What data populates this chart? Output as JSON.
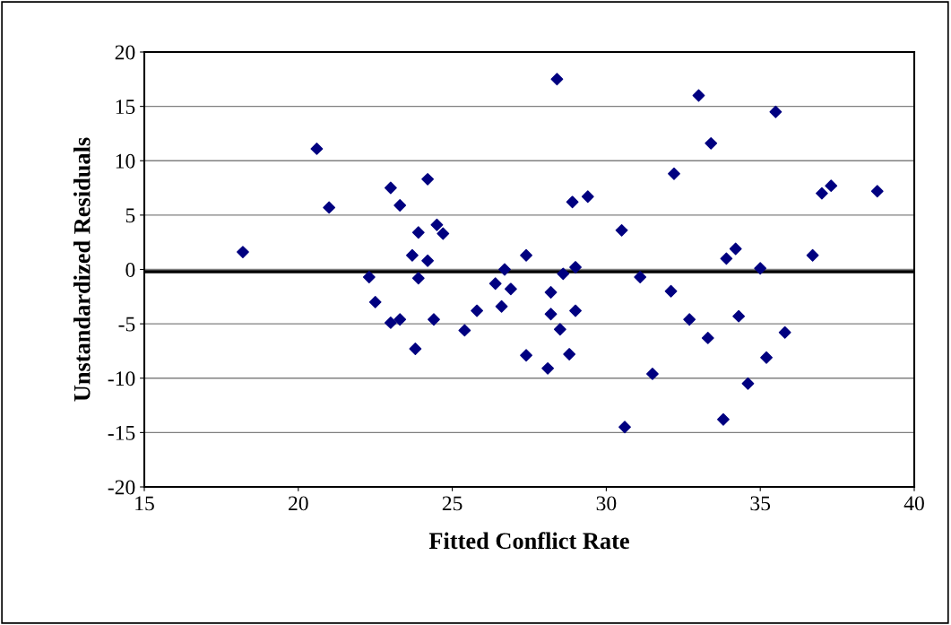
{
  "chart_data": {
    "type": "scatter",
    "xlabel": "Fitted Conflict Rate",
    "ylabel": "Unstandardized Residuals",
    "x": [
      18.2,
      20.6,
      21.0,
      22.3,
      22.5,
      23.0,
      23.0,
      23.3,
      23.3,
      23.7,
      23.8,
      23.9,
      23.9,
      24.2,
      24.2,
      24.4,
      24.5,
      24.7,
      25.4,
      25.8,
      26.4,
      26.6,
      26.7,
      26.9,
      27.4,
      27.4,
      28.1,
      28.2,
      28.2,
      28.4,
      28.5,
      28.6,
      28.8,
      28.9,
      29.0,
      29.0,
      29.4,
      30.5,
      30.6,
      31.1,
      31.5,
      32.1,
      32.2,
      32.7,
      33.0,
      33.3,
      33.4,
      33.8,
      33.9,
      34.2,
      34.3,
      34.6,
      35.0,
      35.2,
      35.5,
      35.8,
      36.7,
      37.0,
      37.3,
      38.8
    ],
    "series": [
      {
        "color": "#000080",
        "values": [
          1.6,
          11.1,
          5.7,
          -0.7,
          -3.0,
          7.5,
          -4.9,
          5.9,
          -4.6,
          1.3,
          -7.3,
          -0.8,
          3.4,
          8.3,
          0.8,
          -4.6,
          4.1,
          3.3,
          -5.6,
          -3.8,
          -1.3,
          -3.4,
          0.0,
          -1.8,
          1.3,
          -7.9,
          -9.1,
          -2.1,
          -4.1,
          17.5,
          -5.5,
          -0.4,
          -7.8,
          6.2,
          0.2,
          -3.8,
          6.7,
          3.6,
          -14.5,
          -0.7,
          -9.6,
          -2.0,
          8.8,
          -4.6,
          16.0,
          -6.3,
          11.6,
          -13.8,
          1.0,
          1.9,
          -4.3,
          -10.5,
          0.1,
          -8.1,
          14.5,
          -5.8,
          1.3,
          7.0,
          7.7,
          7.2
        ]
      }
    ],
    "marker": "diamond",
    "xlim": [
      15,
      40
    ],
    "xticks": [
      15,
      20,
      25,
      30,
      35,
      40
    ],
    "ylim": [
      -20,
      20
    ],
    "yticks": [
      -20,
      -15,
      -10,
      -5,
      0,
      5,
      10,
      15,
      20
    ],
    "grid": "y",
    "ref_lines": [
      {
        "axis": "y",
        "value": -0.2,
        "color": "#000000"
      }
    ]
  }
}
